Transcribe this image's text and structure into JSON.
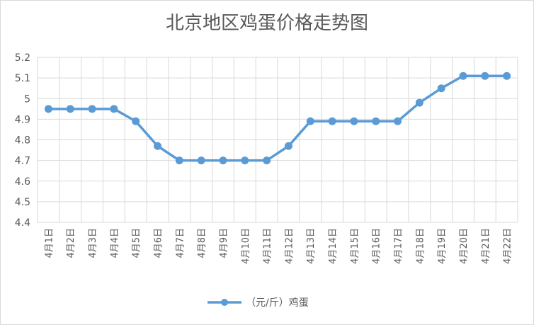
{
  "chart_data": {
    "type": "line",
    "title": "北京地区鸡蛋价格走势图",
    "xlabel": "",
    "ylabel": "",
    "categories": [
      "4月1日",
      "4月2日",
      "4月3日",
      "4月4日",
      "4月5日",
      "4月6日",
      "4月7日",
      "4月8日",
      "4月9日",
      "4月10日",
      "4月11日",
      "4月12日",
      "4月13日",
      "4月14日",
      "4月15日",
      "4月16日",
      "4月17日",
      "4月18日",
      "4月19日",
      "4月20日",
      "4月21日",
      "4月22日"
    ],
    "series": [
      {
        "name": "（元/斤）鸡蛋",
        "values": [
          4.95,
          4.95,
          4.95,
          4.95,
          4.89,
          4.77,
          4.7,
          4.7,
          4.7,
          4.7,
          4.7,
          4.77,
          4.89,
          4.89,
          4.89,
          4.89,
          4.89,
          4.98,
          5.05,
          5.11,
          5.11,
          5.11
        ]
      }
    ],
    "ylim": [
      4.4,
      5.2
    ],
    "yticks": [
      "4.4",
      "4.5",
      "4.6",
      "4.7",
      "4.8",
      "4.9",
      "5",
      "5.1",
      "5.2"
    ],
    "grid": true,
    "legend": "bottom",
    "color": "#5b9bd5"
  }
}
